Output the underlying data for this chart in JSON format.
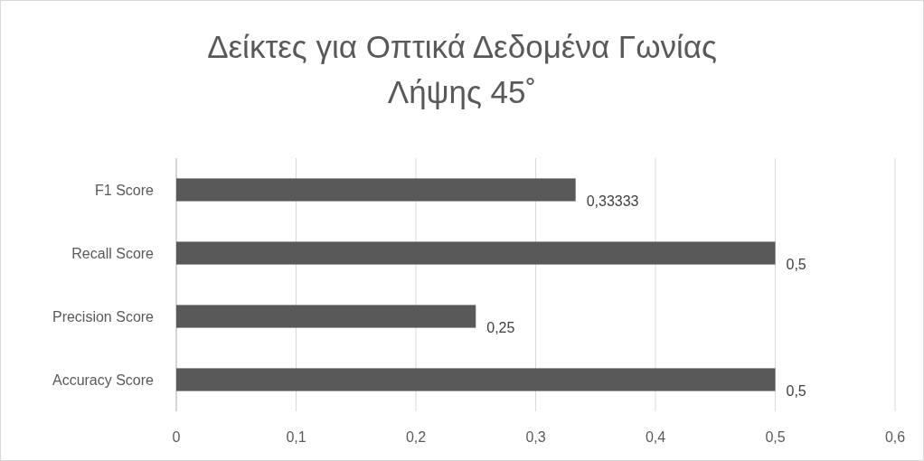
{
  "chart_data": {
    "type": "bar",
    "orientation": "horizontal",
    "title": "Δείκτες για Οπτικά Δεδομένα Γωνίας Λήψης 45˚",
    "categories": [
      "F1 Score",
      "Recall Score",
      "Precision Score",
      "Accuracy Score"
    ],
    "values": [
      0.33333,
      0.5,
      0.25,
      0.5
    ],
    "color": "#595959",
    "value_labels": [
      "0,33333",
      "0,5",
      "0,25",
      "0,5"
    ],
    "xlim": [
      0,
      0.6
    ],
    "xticks": [
      {
        "value": 0,
        "label": "0"
      },
      {
        "value": 0.1,
        "label": "0,1"
      },
      {
        "value": 0.2,
        "label": "0,2"
      },
      {
        "value": 0.3,
        "label": "0,3"
      },
      {
        "value": 0.4,
        "label": "0,4"
      },
      {
        "value": 0.5,
        "label": "0,5"
      },
      {
        "value": 0.6,
        "label": "0,6"
      }
    ],
    "grid": "x"
  }
}
